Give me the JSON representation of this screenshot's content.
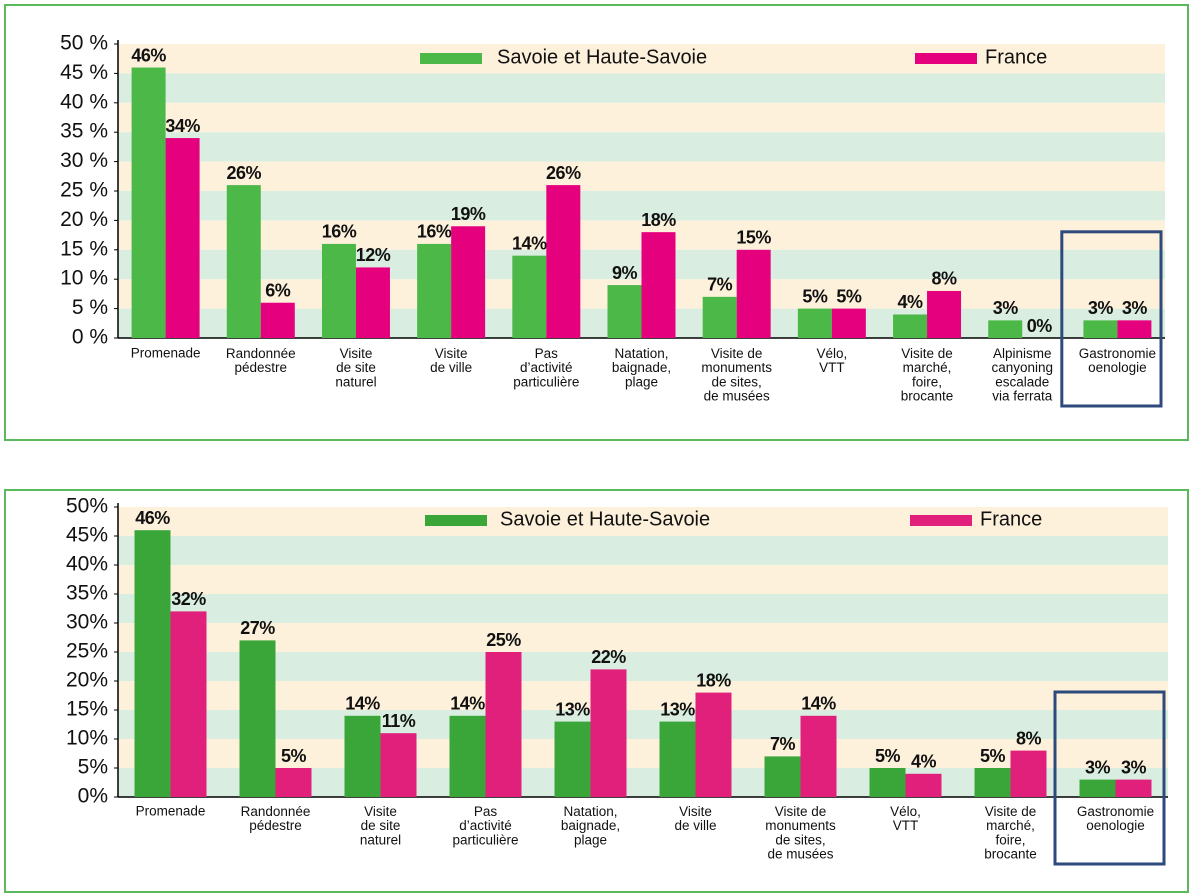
{
  "chart_data": [
    {
      "type": "bar",
      "categories": [
        "Promenade",
        "Randonnée\npédestre",
        "Visite\nde site\nnaturel",
        "Visite\nde ville",
        "Pas\nd’activité\nparticulière",
        "Natation,\nbaignade,\nplage",
        "Visite de\nmonuments\nde sites,\nde musées",
        "Vélo,\nVTT",
        "Visite de\nmarché,\nfoire,\nbrocante",
        "Alpinisme\ncanyoning\nescalade\nvia ferrata",
        "Gastronomie\noenologie"
      ],
      "series": [
        {
          "name": "Savoie et Haute-Savoie",
          "color": "#4cb848",
          "values": [
            46,
            26,
            16,
            16,
            14,
            9,
            7,
            5,
            4,
            3,
            3
          ],
          "value_labels": [
            "46%",
            "26%",
            "16%",
            "16%",
            "14%",
            "9%",
            "7%",
            "5%",
            "4%",
            "3%",
            "3%"
          ]
        },
        {
          "name": "France",
          "color": "#e5007e",
          "values": [
            34,
            6,
            12,
            19,
            26,
            18,
            15,
            5,
            8,
            0,
            3
          ],
          "value_labels": [
            "34%",
            "6%",
            "12%",
            "19%",
            "26%",
            "18%",
            "15%",
            "5%",
            "8%",
            "0%",
            "3%"
          ]
        }
      ],
      "ylim": [
        0,
        50
      ],
      "yticks": [
        {
          "value": 0,
          "label": "0 %"
        },
        {
          "value": 5,
          "label": "5 %"
        },
        {
          "value": 10,
          "label": "10 %"
        },
        {
          "value": 15,
          "label": "15 %"
        },
        {
          "value": 20,
          "label": "20 %"
        },
        {
          "value": 25,
          "label": "25 %"
        },
        {
          "value": 30,
          "label": "30 %"
        },
        {
          "value": 35,
          "label": "35 %"
        },
        {
          "value": 40,
          "label": "40 %"
        },
        {
          "value": 45,
          "label": "45 %"
        },
        {
          "value": 50,
          "label": "50 %"
        }
      ],
      "legend": "top"
    },
    {
      "type": "bar",
      "categories": [
        "Promenade",
        "Randonnée\npédestre",
        "Visite\nde site\nnaturel",
        "Pas\nd’activité\nparticulière",
        "Natation,\nbaignade,\nplage",
        "Visite\nde ville",
        "Visite de\nmonuments\nde sites,\nde musées",
        "Vélo,\nVTT",
        "Visite de\nmarché,\nfoire,\nbrocante",
        "Gastronomie\noenologie"
      ],
      "series": [
        {
          "name": "Savoie et Haute-Savoie",
          "color": "#3aa63a",
          "values": [
            46,
            27,
            14,
            14,
            13,
            13,
            7,
            5,
            5,
            3
          ],
          "value_labels": [
            "46%",
            "27%",
            "14%",
            "14%",
            "13%",
            "13%",
            "7%",
            "5%",
            "5%",
            "3%"
          ]
        },
        {
          "name": "France",
          "color": "#e0207a",
          "values": [
            32,
            5,
            11,
            25,
            22,
            18,
            14,
            4,
            8,
            3
          ],
          "value_labels": [
            "32%",
            "5%",
            "11%",
            "25%",
            "22%",
            "18%",
            "14%",
            "4%",
            "8%",
            "3%"
          ]
        }
      ],
      "ylim": [
        0,
        50
      ],
      "yticks": [
        {
          "value": 0,
          "label": "0%"
        },
        {
          "value": 5,
          "label": "5%"
        },
        {
          "value": 10,
          "label": "10%"
        },
        {
          "value": 15,
          "label": "15%"
        },
        {
          "value": 20,
          "label": "20%"
        },
        {
          "value": 25,
          "label": "25%"
        },
        {
          "value": 30,
          "label": "30%"
        },
        {
          "value": 35,
          "label": "35%"
        },
        {
          "value": 40,
          "label": "40%"
        },
        {
          "value": 45,
          "label": "45%"
        },
        {
          "value": 50,
          "label": "50%"
        }
      ],
      "legend": "top"
    }
  ]
}
